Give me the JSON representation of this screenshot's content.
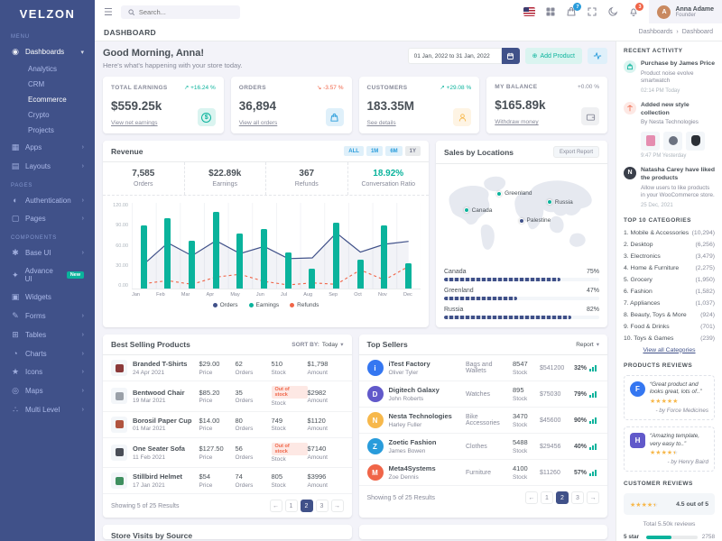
{
  "brand": {
    "logo": "VELZON"
  },
  "icons": {
    "hamburger": "☰",
    "chevron_down": "▾",
    "chevron_right": "›",
    "caret": "▾",
    "plus": "⊕",
    "dollar": "$",
    "up_arrow": "↗",
    "down_arrow": "↘",
    "dashboards": "◉",
    "apps": "▦",
    "layouts": "▤",
    "authentication": "◐",
    "pages": "▢",
    "base_ui": "✱",
    "advance_ui": "✦",
    "widgets": "▣",
    "forms": "✎",
    "tables": "⊞",
    "charts": "◔",
    "icons_item": "★",
    "maps": "◎",
    "multi_level": "∴"
  },
  "topbar": {
    "search_placeholder": "Search...",
    "cart_badge": "7",
    "notif_badge": "3",
    "user": {
      "name": "Anna Adame",
      "role": "Founder",
      "initial": "A"
    }
  },
  "pagehead": {
    "title": "DASHBOARD",
    "breadcrumb_parent": "Dashboards",
    "breadcrumb_sep": "›",
    "breadcrumb_current": "Dashboard"
  },
  "sidebar": {
    "menu_label": "MENU",
    "pages_label": "PAGES",
    "components_label": "COMPONENTS",
    "items": {
      "dashboards": "Dashboards",
      "analytics": "Analytics",
      "crm": "CRM",
      "ecommerce": "Ecommerce",
      "crypto": "Crypto",
      "projects": "Projects",
      "apps": "Apps",
      "layouts": "Layouts",
      "authentication": "Authentication",
      "pages": "Pages",
      "base_ui": "Base UI",
      "advance_ui": "Advance UI",
      "advance_ui_badge": "New",
      "widgets": "Widgets",
      "forms": "Forms",
      "tables": "Tables",
      "charts": "Charts",
      "icons": "Icons",
      "maps": "Maps",
      "multi_level": "Multi Level"
    }
  },
  "greeting": {
    "title": "Good Morning, Anna!",
    "subtitle": "Here's what's happening with your store today.",
    "date_range": "01 Jan, 2022 to 31 Jan, 2022",
    "add_product": "Add Product"
  },
  "stats": [
    {
      "label": "TOTAL EARNINGS",
      "delta": "↗ +16.24 %",
      "trend": "up",
      "value": "$559.25k",
      "link": "View net earnings",
      "icon": "dollar-circle-icon"
    },
    {
      "label": "ORDERS",
      "delta": "↘ -3.57 %",
      "trend": "down",
      "value": "36,894",
      "link": "View all orders",
      "icon": "shopping-bag-icon"
    },
    {
      "label": "CUSTOMERS",
      "delta": "↗ +29.08 %",
      "trend": "up",
      "value": "183.35M",
      "link": "See details",
      "icon": "user-circle-icon"
    },
    {
      "label": "MY BALANCE",
      "delta": "+0.00 %",
      "trend": "flat",
      "value": "$165.89k",
      "link": "Withdraw money",
      "icon": "wallet-icon"
    }
  ],
  "revenue": {
    "title": "Revenue",
    "filters": [
      "ALL",
      "1M",
      "6M",
      "1Y"
    ],
    "stats": [
      {
        "value": "7,585",
        "label": "Orders"
      },
      {
        "value": "$22.89k",
        "label": "Earnings"
      },
      {
        "value": "367",
        "label": "Refunds"
      },
      {
        "value": "18.92%",
        "label": "Conversation Ratio"
      }
    ]
  },
  "chart_data": {
    "type": "bar",
    "title": "Revenue",
    "categories": [
      "Jan",
      "Feb",
      "Mar",
      "Apr",
      "May",
      "Jun",
      "Jul",
      "Aug",
      "Sep",
      "Oct",
      "Nov",
      "Dec"
    ],
    "series": [
      {
        "name": "Orders",
        "render": "line",
        "color": "#405189",
        "values": [
          34,
          64,
          46,
          67,
          49,
          59,
          42,
          43,
          78,
          51,
          62,
          66
        ]
      },
      {
        "name": "Earnings",
        "render": "bar",
        "color": "#0ab39c",
        "values": [
          88,
          98,
          67,
          108,
          77,
          83,
          50,
          28,
          92,
          41,
          88,
          35
        ]
      },
      {
        "name": "Refunds",
        "render": "line-dashed",
        "color": "#f06548",
        "values": [
          7,
          11,
          6,
          16,
          20,
          10,
          5,
          8,
          6,
          26,
          12,
          31
        ]
      }
    ],
    "ylim": [
      0,
      120
    ],
    "yticks": [
      "120.00",
      "90.00",
      "60.00",
      "30.00",
      "0.00"
    ],
    "legend_position": "bottom",
    "grid": true
  },
  "sales_locations": {
    "title": "Sales by Locations",
    "export_label": "Export Report",
    "markers": [
      {
        "name": "Greenland",
        "color": "#0ab39c"
      },
      {
        "name": "Canada",
        "color": "#0ab39c"
      },
      {
        "name": "Russia",
        "color": "#0ab39c"
      },
      {
        "name": "Palestine",
        "color": "#405189"
      }
    ],
    "bars": [
      {
        "name": "Canada",
        "pct_label": "75%",
        "value": 75
      },
      {
        "name": "Greenland",
        "pct_label": "47%",
        "value": 47
      },
      {
        "name": "Russia",
        "pct_label": "82%",
        "value": 82
      }
    ]
  },
  "best_selling": {
    "title": "Best Selling Products",
    "sort_label": "SORT BY:",
    "sort_value": "Today",
    "price_label": "Price",
    "orders_label": "Orders",
    "stock_label": "Stock",
    "amount_label": "Amount",
    "out_of_stock": "Out of stock",
    "rows": [
      {
        "name": "Branded T-Shirts",
        "date": "24 Apr 2021",
        "price": "$29.00",
        "orders": "62",
        "stock": "510",
        "amount": "$1,798",
        "oos": false,
        "thumb_color": "#8b3a3a"
      },
      {
        "name": "Bentwood Chair",
        "date": "19 Mar 2021",
        "price": "$85.20",
        "orders": "35",
        "stock": "",
        "amount": "$2982",
        "oos": true,
        "thumb_color": "#9aa0a8"
      },
      {
        "name": "Borosil Paper Cup",
        "date": "01 Mar 2021",
        "price": "$14.00",
        "orders": "80",
        "stock": "749",
        "amount": "$1120",
        "oos": false,
        "thumb_color": "#b0543f"
      },
      {
        "name": "One Seater Sofa",
        "date": "11 Feb 2021",
        "price": "$127.50",
        "orders": "56",
        "stock": "",
        "amount": "$7140",
        "oos": true,
        "thumb_color": "#4a4e57"
      },
      {
        "name": "Stillbird Helmet",
        "date": "17 Jan 2021",
        "price": "$54",
        "orders": "74",
        "stock": "805",
        "amount": "$3996",
        "oos": false,
        "thumb_color": "#3f8f5f"
      }
    ],
    "footer": "Showing 5 of 25 Results"
  },
  "top_sellers": {
    "title": "Top Sellers",
    "report_label": "Report",
    "stock_label": "Stock",
    "rows": [
      {
        "company": "iTest Factory",
        "owner": "Oliver Tyler",
        "category": "Bags and Wallets",
        "stock": "8547",
        "amount": "$541200",
        "pct": "32%",
        "initial": "i",
        "color": "#3577f1"
      },
      {
        "company": "Digitech Galaxy",
        "owner": "John Roberts",
        "category": "Watches",
        "stock": "895",
        "amount": "$75030",
        "pct": "79%",
        "initial": "D",
        "color": "#6159ca"
      },
      {
        "company": "Nesta Technologies",
        "owner": "Harley Fuller",
        "category": "Bike Accessories",
        "stock": "3470",
        "amount": "$45600",
        "pct": "90%",
        "initial": "N",
        "color": "#f7b84b"
      },
      {
        "company": "Zoetic Fashion",
        "owner": "James Bowen",
        "category": "Clothes",
        "stock": "5488",
        "amount": "$29456",
        "pct": "40%",
        "initial": "Z",
        "color": "#299cdb"
      },
      {
        "company": "Meta4Systems",
        "owner": "Zoe Dennis",
        "category": "Furniture",
        "stock": "4100",
        "amount": "$11260",
        "pct": "57%",
        "initial": "M",
        "color": "#f06548"
      }
    ],
    "footer": "Showing 5 of 25 Results"
  },
  "pagination": {
    "prev": "←",
    "next": "→",
    "p1": "1",
    "p2": "2",
    "p3": "3"
  },
  "recent_activity": {
    "header": "RECENT ACTIVITY",
    "items": [
      {
        "title": "Purchase by James Price",
        "sub": "Product noise evolve smartwatch",
        "time": "02:14 PM Today"
      },
      {
        "title": "Added new style collection",
        "sub": "By Nesta Technologies",
        "time": "9:47 PM Yesterday",
        "img_colors": [
          "#e58db0",
          "#6b7280",
          "#2b2f36"
        ]
      },
      {
        "title": "Natasha Carey have liked the products",
        "sub": "Allow users to like products in your WooCommerce store.",
        "time": "25 Dec, 2021",
        "avatar_initial": "N"
      }
    ]
  },
  "top_categories": {
    "header": "TOP 10 CATEGORIES",
    "rows": [
      {
        "name": "1. Mobile & Accessories",
        "count": "(10,294)"
      },
      {
        "name": "2. Desktop",
        "count": "(6,256)"
      },
      {
        "name": "3. Electronics",
        "count": "(3,479)"
      },
      {
        "name": "4. Home & Furniture",
        "count": "(2,275)"
      },
      {
        "name": "5. Grocery",
        "count": "(1,950)"
      },
      {
        "name": "6. Fashion",
        "count": "(1,582)"
      },
      {
        "name": "7. Appliances",
        "count": "(1,037)"
      },
      {
        "name": "8. Beauty, Toys & More",
        "count": "(924)"
      },
      {
        "name": "9. Food & Drinks",
        "count": "(701)"
      },
      {
        "name": "10. Toys & Games",
        "count": "(239)"
      }
    ],
    "view_all": "View all Categories"
  },
  "products_reviews": {
    "header": "PRODUCTS REVIEWS",
    "items": [
      {
        "quote": "“Great product and looks great, lots of..”",
        "rating": 5,
        "by": "- by Force Medicines",
        "logo_color": "#3577f1",
        "logo_initial": "F"
      },
      {
        "quote": "“Amazing template, very easy to..”",
        "rating": 4.5,
        "by": "- by Henry Baird",
        "logo_color": "#6159ca",
        "logo_initial": "H"
      }
    ]
  },
  "customer_reviews": {
    "header": "CUSTOMER REVIEWS",
    "rating": 4.5,
    "score_label": "4.5 out of 5",
    "total_label": "Total 5.50k reviews",
    "row": {
      "label": "5 star",
      "value": 50,
      "count": "2758"
    }
  },
  "bottom": {
    "left_title": "Store Visits by Source"
  },
  "colors": {
    "accent": "#0ab39c",
    "primary": "#405189",
    "info": "#299cdb",
    "danger": "#f06548",
    "warning": "#f7b84b"
  }
}
